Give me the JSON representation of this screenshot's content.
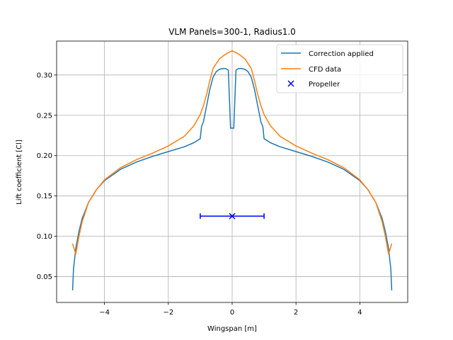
{
  "chart_data": {
    "type": "line",
    "title": "VLM Panels=300-1, Radius1.0",
    "xlabel": "Wingspan [m]",
    "ylabel": "Lift coefficient [Cl]",
    "xlim": [
      -5.5,
      5.5
    ],
    "ylim": [
      0.018,
      0.342
    ],
    "xticks": [
      -4,
      -2,
      0,
      2,
      4
    ],
    "xtick_labels": [
      "−4",
      "−2",
      "0",
      "2",
      "4"
    ],
    "yticks": [
      0.05,
      0.1,
      0.15,
      0.2,
      0.25,
      0.3
    ],
    "ytick_labels": [
      "0.05",
      "0.10",
      "0.15",
      "0.20",
      "0.25",
      "0.30"
    ],
    "grid": true,
    "legend_position": "top-right",
    "colors": {
      "correction": "#1f77b4",
      "cfd": "#ff7f0e",
      "propeller": "#0000ff",
      "grid": "#b0b0b0"
    },
    "series": [
      {
        "name": "Correction applied",
        "kind": "line",
        "x": [
          -5.0,
          -4.97,
          -4.9,
          -4.8,
          -4.7,
          -4.5,
          -4.25,
          -4.0,
          -3.5,
          -3.0,
          -2.5,
          -2.0,
          -1.5,
          -1.2,
          -1.0,
          -0.96,
          -0.9,
          -0.8,
          -0.7,
          -0.6,
          -0.5,
          -0.4,
          -0.3,
          -0.2,
          -0.12,
          -0.05,
          0.05,
          0.12,
          0.2,
          0.3,
          0.4,
          0.5,
          0.6,
          0.7,
          0.8,
          0.9,
          0.96,
          1.0,
          1.2,
          1.5,
          2.0,
          2.5,
          3.0,
          3.5,
          4.0,
          4.25,
          4.5,
          4.7,
          4.8,
          4.9,
          4.97,
          5.0
        ],
        "y": [
          0.033,
          0.06,
          0.085,
          0.106,
          0.122,
          0.142,
          0.158,
          0.169,
          0.183,
          0.192,
          0.199,
          0.205,
          0.211,
          0.216,
          0.221,
          0.236,
          0.242,
          0.262,
          0.282,
          0.297,
          0.304,
          0.307,
          0.308,
          0.308,
          0.306,
          0.234,
          0.234,
          0.306,
          0.308,
          0.308,
          0.307,
          0.304,
          0.297,
          0.282,
          0.262,
          0.242,
          0.236,
          0.221,
          0.216,
          0.211,
          0.205,
          0.199,
          0.192,
          0.183,
          0.169,
          0.158,
          0.142,
          0.122,
          0.106,
          0.085,
          0.06,
          0.033
        ]
      },
      {
        "name": "CFD data",
        "kind": "line",
        "x": [
          -5.0,
          -4.9,
          -4.8,
          -4.7,
          -4.5,
          -4.25,
          -4.0,
          -3.5,
          -3.0,
          -2.5,
          -2.0,
          -1.5,
          -1.2,
          -1.0,
          -0.9,
          -0.8,
          -0.7,
          -0.6,
          -0.5,
          -0.4,
          -0.3,
          -0.2,
          -0.1,
          0.0,
          0.1,
          0.2,
          0.3,
          0.4,
          0.5,
          0.6,
          0.7,
          0.8,
          0.9,
          1.0,
          1.2,
          1.5,
          2.0,
          2.5,
          3.0,
          3.5,
          4.0,
          4.25,
          4.5,
          4.7,
          4.8,
          4.9,
          5.0
        ],
        "y": [
          0.091,
          0.078,
          0.1,
          0.118,
          0.142,
          0.158,
          0.17,
          0.185,
          0.195,
          0.203,
          0.212,
          0.224,
          0.237,
          0.251,
          0.262,
          0.276,
          0.293,
          0.308,
          0.314,
          0.32,
          0.323,
          0.326,
          0.328,
          0.33,
          0.328,
          0.326,
          0.323,
          0.32,
          0.314,
          0.308,
          0.293,
          0.276,
          0.262,
          0.251,
          0.237,
          0.224,
          0.212,
          0.203,
          0.195,
          0.185,
          0.17,
          0.158,
          0.142,
          0.118,
          0.1,
          0.078,
          0.091
        ]
      },
      {
        "name": "Propeller",
        "kind": "marker",
        "x": [
          0.0
        ],
        "y": [
          0.125
        ],
        "xerr": [
          1.0
        ]
      }
    ]
  }
}
